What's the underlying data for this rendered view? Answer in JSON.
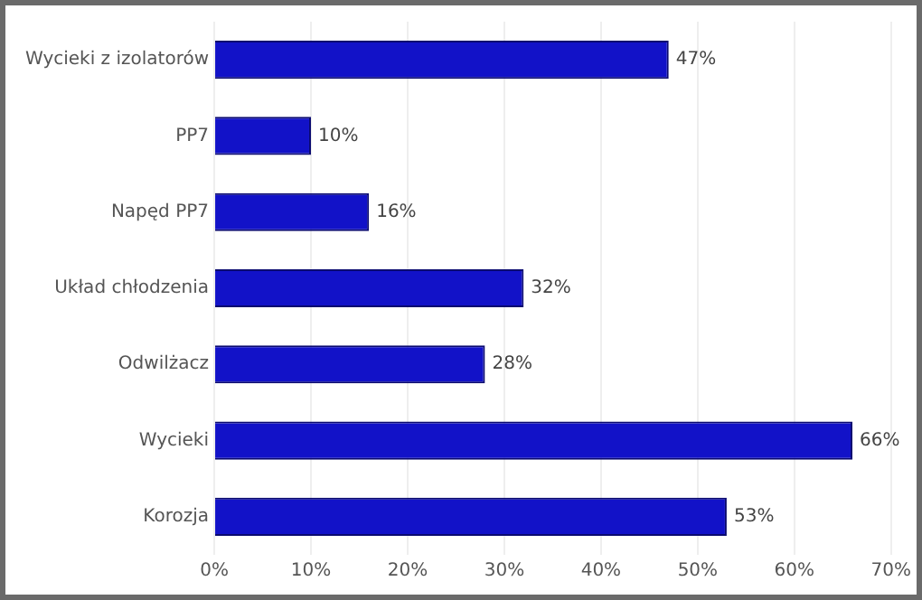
{
  "chart_data": {
    "type": "bar",
    "orientation": "horizontal",
    "categories": [
      "Wycieki z izolatorów",
      "PP7",
      "Napęd PP7",
      "Układ chłodzenia",
      "Odwilżacz",
      "Wycieki",
      "Korozja"
    ],
    "values": [
      47,
      10,
      16,
      32,
      28,
      66,
      53
    ],
    "value_labels": [
      "47%",
      "10%",
      "16%",
      "32%",
      "28%",
      "66%",
      "53%"
    ],
    "color": "#1212c8",
    "xlim": [
      0,
      70
    ],
    "xticks": [
      {
        "value": 0,
        "label": "0%"
      },
      {
        "value": 10,
        "label": "10%"
      },
      {
        "value": 20,
        "label": "20%"
      },
      {
        "value": 30,
        "label": "30%"
      },
      {
        "value": 40,
        "label": "40%"
      },
      {
        "value": 50,
        "label": "50%"
      },
      {
        "value": 60,
        "label": "60%"
      },
      {
        "value": 70,
        "label": "70%"
      }
    ],
    "grid": "x",
    "legend": false
  }
}
